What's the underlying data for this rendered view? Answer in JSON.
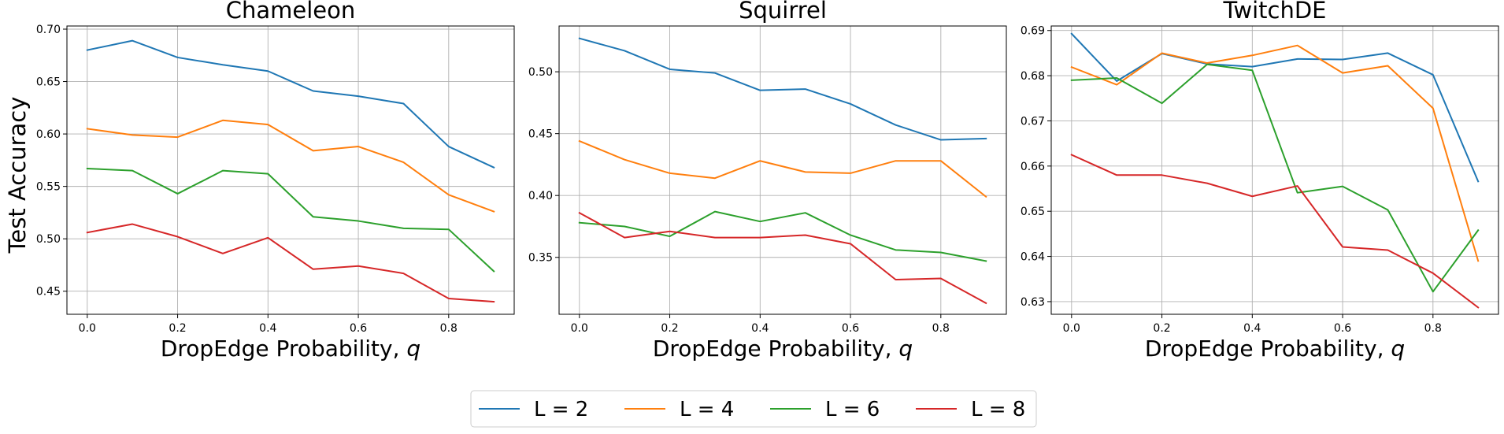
{
  "figure": {
    "ylabel": "Test Accuracy",
    "xlabel_prefix": "DropEdge Probability, ",
    "xlabel_var": "q"
  },
  "legend": {
    "placement": "bottom-center",
    "entries": [
      {
        "label": "L = 2",
        "color": "#1f77b4"
      },
      {
        "label": "L = 4",
        "color": "#ff7f0e"
      },
      {
        "label": "L = 6",
        "color": "#2ca02c"
      },
      {
        "label": "L = 8",
        "color": "#d62728"
      }
    ]
  },
  "chart_data": [
    {
      "type": "line",
      "title": "Chameleon",
      "xlabel": "DropEdge Probability, q",
      "ylabel": "Test Accuracy",
      "x": [
        0.0,
        0.1,
        0.2,
        0.3,
        0.4,
        0.5,
        0.6,
        0.7,
        0.8,
        0.9
      ],
      "xlim": [
        -0.045,
        0.945
      ],
      "ylim": [
        0.428,
        0.703
      ],
      "xticks": [
        0.0,
        0.2,
        0.4,
        0.6,
        0.8
      ],
      "xtick_labels": [
        "0.0",
        "0.2",
        "0.4",
        "0.6",
        "0.8"
      ],
      "yticks": [
        0.45,
        0.5,
        0.55,
        0.6,
        0.65,
        0.7
      ],
      "ytick_labels": [
        "0.45",
        "0.50",
        "0.55",
        "0.60",
        "0.65",
        "0.70"
      ],
      "grid": true,
      "series": [
        {
          "name": "L = 2",
          "color": "#1f77b4",
          "values": [
            0.68,
            0.689,
            0.673,
            0.666,
            0.66,
            0.641,
            0.636,
            0.629,
            0.588,
            0.568
          ]
        },
        {
          "name": "L = 4",
          "color": "#ff7f0e",
          "values": [
            0.605,
            0.599,
            0.597,
            0.613,
            0.609,
            0.584,
            0.588,
            0.573,
            0.542,
            0.526
          ]
        },
        {
          "name": "L = 6",
          "color": "#2ca02c",
          "values": [
            0.567,
            0.565,
            0.543,
            0.565,
            0.562,
            0.521,
            0.517,
            0.51,
            0.509,
            0.469
          ]
        },
        {
          "name": "L = 8",
          "color": "#d62728",
          "values": [
            0.506,
            0.514,
            0.502,
            0.486,
            0.501,
            0.471,
            0.474,
            0.467,
            0.443,
            0.44
          ]
        }
      ]
    },
    {
      "type": "line",
      "title": "Squirrel",
      "xlabel": "DropEdge Probability, q",
      "ylabel": "",
      "x": [
        0.0,
        0.1,
        0.2,
        0.3,
        0.4,
        0.5,
        0.6,
        0.7,
        0.8,
        0.9
      ],
      "xlim": [
        -0.045,
        0.945
      ],
      "ylim": [
        0.304,
        0.537
      ],
      "xticks": [
        0.0,
        0.2,
        0.4,
        0.6,
        0.8
      ],
      "xtick_labels": [
        "0.0",
        "0.2",
        "0.4",
        "0.6",
        "0.8"
      ],
      "yticks": [
        0.35,
        0.4,
        0.45,
        0.5
      ],
      "ytick_labels": [
        "0.35",
        "0.40",
        "0.45",
        "0.50"
      ],
      "grid": true,
      "series": [
        {
          "name": "L = 2",
          "color": "#1f77b4",
          "values": [
            0.527,
            0.517,
            0.502,
            0.499,
            0.485,
            0.486,
            0.474,
            0.457,
            0.445,
            0.446
          ]
        },
        {
          "name": "L = 4",
          "color": "#ff7f0e",
          "values": [
            0.444,
            0.429,
            0.418,
            0.414,
            0.428,
            0.419,
            0.418,
            0.428,
            0.428,
            0.399
          ]
        },
        {
          "name": "L = 6",
          "color": "#2ca02c",
          "values": [
            0.378,
            0.375,
            0.367,
            0.387,
            0.379,
            0.386,
            0.368,
            0.356,
            0.354,
            0.347
          ]
        },
        {
          "name": "L = 8",
          "color": "#d62728",
          "values": [
            0.386,
            0.366,
            0.371,
            0.366,
            0.366,
            0.368,
            0.361,
            0.332,
            0.333,
            0.313
          ]
        }
      ]
    },
    {
      "type": "line",
      "title": "TwitchDE",
      "xlabel": "DropEdge Probability, q",
      "ylabel": "",
      "x": [
        0.0,
        0.1,
        0.2,
        0.3,
        0.4,
        0.5,
        0.6,
        0.7,
        0.8,
        0.9
      ],
      "xlim": [
        -0.045,
        0.945
      ],
      "ylim": [
        0.6272,
        0.691
      ],
      "xticks": [
        0.0,
        0.2,
        0.4,
        0.6,
        0.8
      ],
      "xtick_labels": [
        "0.0",
        "0.2",
        "0.4",
        "0.6",
        "0.8"
      ],
      "yticks": [
        0.63,
        0.64,
        0.65,
        0.66,
        0.67,
        0.68,
        0.69
      ],
      "ytick_labels": [
        "0.63",
        "0.64",
        "0.65",
        "0.66",
        "0.67",
        "0.68",
        "0.69"
      ],
      "grid": true,
      "series": [
        {
          "name": "L = 2",
          "color": "#1f77b4",
          "values": [
            0.6893,
            0.6788,
            0.6849,
            0.6826,
            0.682,
            0.6837,
            0.6836,
            0.685,
            0.6802,
            0.6566
          ]
        },
        {
          "name": "L = 4",
          "color": "#ff7f0e",
          "values": [
            0.6819,
            0.678,
            0.685,
            0.6828,
            0.6845,
            0.6867,
            0.6806,
            0.6822,
            0.6728,
            0.639
          ]
        },
        {
          "name": "L = 6",
          "color": "#2ca02c",
          "values": [
            0.679,
            0.6795,
            0.6739,
            0.6825,
            0.6812,
            0.6541,
            0.6555,
            0.6503,
            0.6322,
            0.6458
          ]
        },
        {
          "name": "L = 8",
          "color": "#d62728",
          "values": [
            0.6625,
            0.658,
            0.658,
            0.6562,
            0.6533,
            0.6556,
            0.6421,
            0.6414,
            0.6363,
            0.6287
          ]
        }
      ]
    }
  ]
}
